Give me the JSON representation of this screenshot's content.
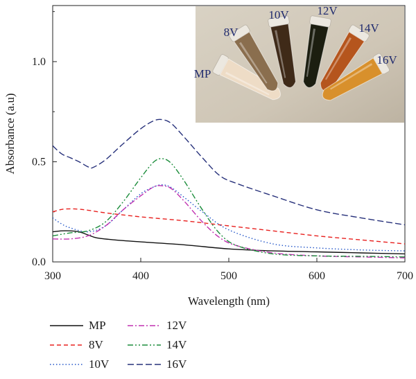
{
  "chart_data": {
    "type": "line",
    "xlabel": "Wavelength (nm)",
    "ylabel": "Absorbance (a.u)",
    "xlim": [
      300,
      700
    ],
    "ylim": [
      0,
      1.28
    ],
    "xticks": [
      "300",
      "400",
      "500",
      "600",
      "700"
    ],
    "yticks": [
      "0.0",
      "0.5",
      "1.0"
    ],
    "xtick_values": [
      300,
      400,
      500,
      600,
      700
    ],
    "ytick_values": [
      0,
      0.5,
      1.0
    ],
    "grid": false,
    "legend_position": "below the plot, two columns",
    "series": [
      {
        "name": "MP",
        "color": "#111111",
        "dash": "solid",
        "x": [
          300,
          310,
          320,
          330,
          340,
          350,
          370,
          400,
          450,
          500,
          550,
          600,
          650,
          700
        ],
        "y": [
          0.15,
          0.155,
          0.155,
          0.15,
          0.135,
          0.12,
          0.11,
          0.1,
          0.085,
          0.065,
          0.055,
          0.05,
          0.045,
          0.04
        ]
      },
      {
        "name": "8V",
        "color": "#e8201e",
        "dash": "dashed",
        "x": [
          300,
          310,
          320,
          330,
          340,
          360,
          400,
          450,
          500,
          550,
          600,
          650,
          700
        ],
        "y": [
          0.25,
          0.262,
          0.265,
          0.263,
          0.258,
          0.245,
          0.225,
          0.205,
          0.18,
          0.155,
          0.13,
          0.11,
          0.09
        ]
      },
      {
        "name": "10V",
        "color": "#2255c8",
        "dash": "dotted",
        "x": [
          300,
          310,
          320,
          340,
          360,
          380,
          400,
          415,
          425,
          435,
          450,
          470,
          500,
          550,
          600,
          650,
          700
        ],
        "y": [
          0.22,
          0.19,
          0.17,
          0.15,
          0.18,
          0.26,
          0.34,
          0.375,
          0.385,
          0.37,
          0.32,
          0.25,
          0.16,
          0.09,
          0.07,
          0.06,
          0.055
        ]
      },
      {
        "name": "12V",
        "color": "#c030b0",
        "dash": "dashdot",
        "x": [
          300,
          320,
          340,
          360,
          380,
          400,
          415,
          425,
          435,
          450,
          470,
          490,
          510,
          550,
          600,
          650,
          700
        ],
        "y": [
          0.115,
          0.115,
          0.13,
          0.18,
          0.26,
          0.33,
          0.375,
          0.38,
          0.365,
          0.3,
          0.2,
          0.12,
          0.08,
          0.045,
          0.03,
          0.025,
          0.02
        ]
      },
      {
        "name": "14V",
        "color": "#1a8c3a",
        "dash": "dashdotdot",
        "x": [
          300,
          320,
          340,
          360,
          380,
          400,
          415,
          425,
          435,
          450,
          470,
          490,
          510,
          550,
          600,
          650,
          700
        ],
        "y": [
          0.13,
          0.145,
          0.155,
          0.2,
          0.3,
          0.42,
          0.5,
          0.515,
          0.49,
          0.4,
          0.26,
          0.14,
          0.08,
          0.04,
          0.03,
          0.028,
          0.025
        ]
      },
      {
        "name": "16V",
        "color": "#26307a",
        "dash": "longdash",
        "x": [
          300,
          310,
          320,
          330,
          340,
          345,
          360,
          380,
          400,
          415,
          425,
          435,
          450,
          470,
          490,
          510,
          550,
          600,
          650,
          700
        ],
        "y": [
          0.58,
          0.54,
          0.52,
          0.5,
          0.475,
          0.47,
          0.51,
          0.59,
          0.665,
          0.705,
          0.71,
          0.69,
          0.62,
          0.52,
          0.43,
          0.39,
          0.33,
          0.26,
          0.22,
          0.185
        ]
      }
    ],
    "inset_photo": {
      "tube_labels": [
        "MP",
        "8V",
        "10V",
        "12V",
        "14V",
        "16V"
      ],
      "tube_colors": [
        "#eedcc6",
        "#8a6e4e",
        "#3f2a18",
        "#1c1e10",
        "#b5551d",
        "#d8902c"
      ],
      "background_color": "#cfc7b8"
    }
  }
}
